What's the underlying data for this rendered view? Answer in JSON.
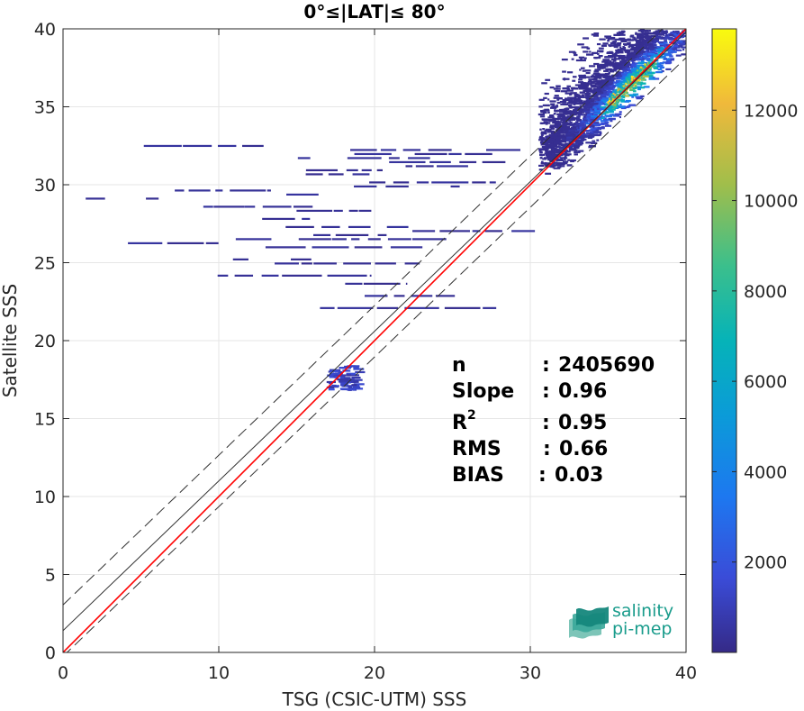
{
  "chart_data": {
    "type": "heatmap",
    "title": "0°≤|LAT|≤ 80°",
    "xlabel": "TSG (CSIC-UTM) SSS",
    "ylabel": "Satellite SSS",
    "xlim": [
      0,
      40
    ],
    "ylim": [
      0,
      40
    ],
    "xticks": [
      "0",
      "10",
      "20",
      "30",
      "40"
    ],
    "yticks": [
      "0",
      "5",
      "10",
      "15",
      "20",
      "25",
      "30",
      "35",
      "40"
    ],
    "grid": true,
    "colorbar": {
      "range": [
        0,
        13800
      ],
      "ticks": [
        "2000",
        "4000",
        "6000",
        "8000",
        "10000",
        "12000"
      ],
      "colormap": "parula"
    },
    "lines": [
      {
        "name": "identity",
        "color": "#ff0000",
        "slope": 1.0,
        "intercept": 0.0
      },
      {
        "name": "fit",
        "color": "#303030",
        "slope": 0.96,
        "intercept": 1.4
      },
      {
        "name": "fit-upper",
        "color": "#303030",
        "dashed": true,
        "slope": 0.96,
        "intercept": 3.05
      },
      {
        "name": "fit-lower",
        "color": "#303030",
        "dashed": true,
        "slope": 0.96,
        "intercept": -0.25
      }
    ],
    "density_clusters": [
      {
        "x": [
          31.5,
          39.5
        ],
        "y": [
          30.5,
          40.0
        ],
        "peak": 13500
      },
      {
        "x": [
          17.0,
          18.8
        ],
        "y": [
          16.8,
          18.5
        ],
        "peak": 1800
      },
      {
        "x": [
          1.0,
          30.0
        ],
        "y": [
          21.5,
          33.5
        ],
        "peak": 400
      }
    ],
    "stats": [
      {
        "label": "n",
        "sep": ":",
        "value": "2405690"
      },
      {
        "label": "Slope",
        "sep": ":",
        "value": "0.96"
      },
      {
        "label": "R",
        "sup": "2",
        "sep": ":",
        "value": "0.95"
      },
      {
        "label": "RMS",
        "sep": ":",
        "value": "0.66"
      },
      {
        "label": "BIAS",
        "sep": ":",
        "value": "0.03"
      }
    ],
    "logo": {
      "line1": "salinity",
      "line2": "pi-mep"
    }
  }
}
